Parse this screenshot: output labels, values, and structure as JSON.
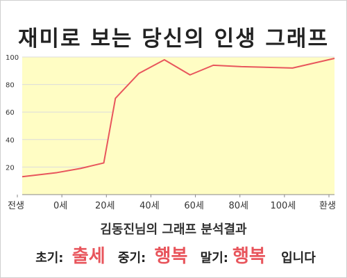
{
  "chart_data": {
    "type": "area",
    "title": "재미로 보는 당신의 인생 그래프",
    "subtitle": "김동진님의 그래프 분석결과",
    "x_tick_labels": [
      "전생",
      "0세",
      "20세",
      "40세",
      "60세",
      "80세",
      "100세",
      "환생"
    ],
    "y_ticks": [
      20,
      40,
      60,
      80,
      100
    ],
    "ylim": [
      0,
      100
    ],
    "xlim": [
      -15,
      119
    ],
    "points": [
      {
        "x": -15,
        "y": 13
      },
      {
        "x": 0,
        "y": 16
      },
      {
        "x": 10,
        "y": 19
      },
      {
        "x": 20,
        "y": 23
      },
      {
        "x": 25,
        "y": 70
      },
      {
        "x": 35,
        "y": 88
      },
      {
        "x": 46,
        "y": 98
      },
      {
        "x": 57,
        "y": 87
      },
      {
        "x": 67,
        "y": 94
      },
      {
        "x": 79,
        "y": 93
      },
      {
        "x": 101,
        "y": 92
      },
      {
        "x": 119,
        "y": 99
      }
    ],
    "fill_color": "#fffdc4",
    "line_color": "#e8555c",
    "grid": true
  },
  "summary": {
    "early_label": "초기:",
    "early_value": "출세",
    "mid_label": "중기:",
    "mid_value": "행복",
    "late_label": "말기:",
    "late_value": "행복",
    "tail": "입니다"
  }
}
